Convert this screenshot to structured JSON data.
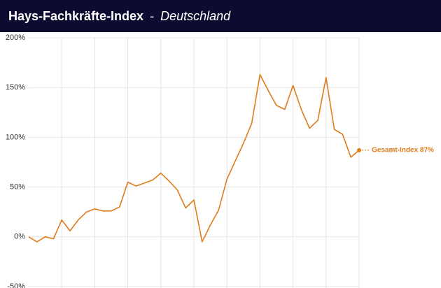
{
  "chart_data": {
    "type": "line",
    "title": "Hays-Fachkräfte-Index",
    "title_separator": "-",
    "subtitle": "Deutschland",
    "series": [
      {
        "name": "Gesamt-Index",
        "color": "#e07b1a",
        "values": [
          0,
          -5,
          0,
          -2,
          17,
          6,
          17,
          25,
          28,
          26,
          26,
          30,
          55,
          51,
          54,
          57,
          64,
          56,
          47,
          29,
          37,
          -5,
          12,
          27,
          58,
          76,
          94,
          114,
          163,
          147,
          132,
          128,
          152,
          128,
          109,
          117,
          160,
          108,
          103,
          80,
          87
        ]
      }
    ],
    "end_label": "Gesamt-Index 87%",
    "ylim": [
      -50,
      200
    ],
    "yticks": [
      {
        "value": -50,
        "label": "-50%"
      },
      {
        "value": 0,
        "label": "0%"
      },
      {
        "value": 50,
        "label": "50%"
      },
      {
        "value": 100,
        "label": "100%"
      },
      {
        "value": 150,
        "label": "150%"
      },
      {
        "value": 200,
        "label": "200%"
      }
    ],
    "grid": true
  }
}
